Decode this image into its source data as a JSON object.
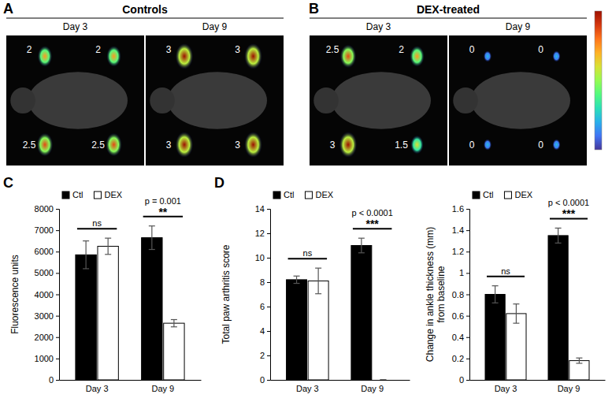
{
  "panel_labels": [
    "A",
    "B",
    "C",
    "D"
  ],
  "images": [
    {
      "title": "Controls",
      "columns": [
        "Day 3",
        "Day 9"
      ],
      "scores": [
        [
          2,
          2,
          2.5,
          2.5
        ],
        [
          3,
          3,
          3,
          3
        ]
      ]
    },
    {
      "title": "DEX-treated",
      "columns": [
        "Day 3",
        "Day 9"
      ],
      "scores": [
        [
          2.5,
          2,
          3,
          1.5
        ],
        [
          0,
          0,
          0,
          0
        ]
      ]
    }
  ],
  "chart_data": [
    {
      "type": "bar",
      "y_label": [
        "Fluorescence units"
      ],
      "categories": [
        "Day 3",
        "Day 9"
      ],
      "series": [
        {
          "name": "Ctl",
          "color": "#000000",
          "values": [
            5850,
            6650
          ],
          "errors": [
            650,
            550
          ]
        },
        {
          "name": "DEX",
          "color": "#ffffff",
          "values": [
            6250,
            2650
          ],
          "errors": [
            380,
            170
          ]
        }
      ],
      "ylim": [
        0,
        8000
      ],
      "yticks": [
        0,
        1000,
        2000,
        3000,
        4000,
        5000,
        6000,
        7000,
        8000
      ],
      "legend": "top-left",
      "annotations": [
        {
          "category": "Day 3",
          "text": "ns"
        },
        {
          "category": "Day 9",
          "text": "p = 0.001"
        },
        {
          "category": "Day 9",
          "text": "**"
        }
      ]
    },
    {
      "type": "bar",
      "y_label": [
        "Total paw arthritis score"
      ],
      "categories": [
        "Day 3",
        "Day 9"
      ],
      "series": [
        {
          "name": "Ctl",
          "color": "#000000",
          "values": [
            8.2,
            11.0
          ],
          "errors": [
            0.3,
            0.6
          ]
        },
        {
          "name": "DEX",
          "color": "#ffffff",
          "values": [
            8.1,
            0
          ],
          "errors": [
            1.05,
            0
          ]
        }
      ],
      "ylim": [
        0,
        14
      ],
      "yticks": [
        0,
        2,
        4,
        6,
        8,
        10,
        12,
        14
      ],
      "legend": "top-left",
      "annotations": [
        {
          "category": "Day 3",
          "text": "ns"
        },
        {
          "category": "Day 9",
          "text": "p < 0.0001"
        },
        {
          "category": "Day 9",
          "text": "***"
        }
      ]
    },
    {
      "type": "bar",
      "y_label": [
        "Change in ankle thickness (mm)",
        "from baseline"
      ],
      "categories": [
        "Day 3",
        "Day 9"
      ],
      "series": [
        {
          "name": "Ctl",
          "color": "#000000",
          "values": [
            0.8,
            1.35
          ],
          "errors": [
            0.08,
            0.07
          ]
        },
        {
          "name": "DEX",
          "color": "#ffffff",
          "values": [
            0.62,
            0.18
          ],
          "errors": [
            0.09,
            0.025
          ]
        }
      ],
      "ylim": [
        0,
        1.6
      ],
      "yticks": [
        0,
        0.2,
        0.4,
        0.6,
        0.8,
        1,
        1.2,
        1.4,
        1.6
      ],
      "legend": "top-left",
      "annotations": [
        {
          "category": "Day 3",
          "text": "ns"
        },
        {
          "category": "Day 9",
          "text": "p < 0.0001"
        },
        {
          "category": "Day 9",
          "text": "***"
        }
      ]
    }
  ]
}
